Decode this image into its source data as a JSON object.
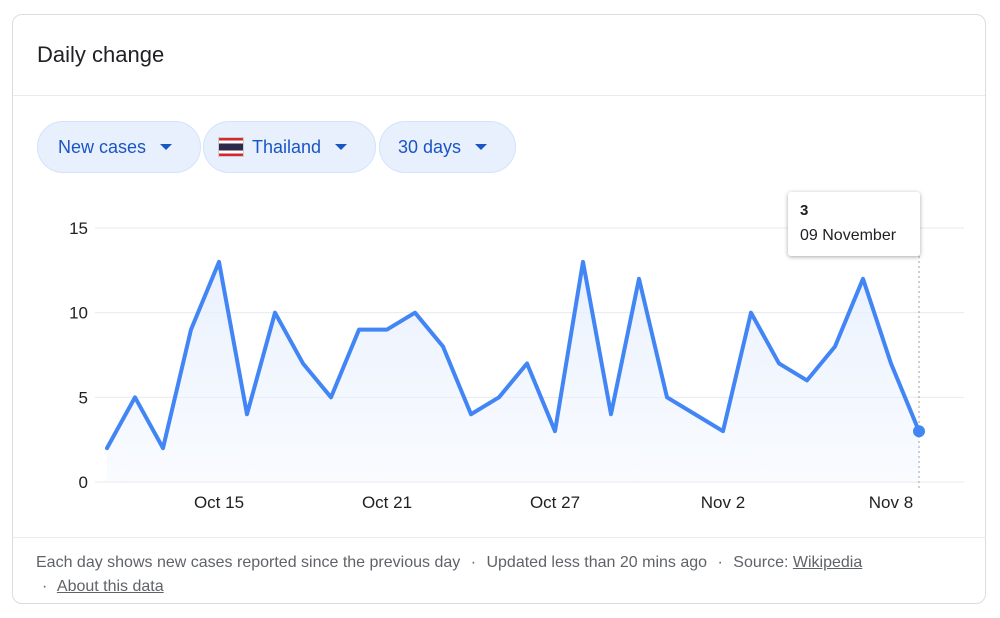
{
  "card": {
    "title": "Daily change"
  },
  "filters": {
    "metric": "New cases",
    "country": "Thailand",
    "range": "30 days"
  },
  "tooltip": {
    "value": "3",
    "date": "09 November"
  },
  "footer": {
    "note": "Each day shows new cases reported since the previous day",
    "updated": "Updated less than 20 mins ago",
    "source_label": "Source:",
    "source_link": "Wikipedia",
    "about_link": "About this data",
    "separator": "·"
  },
  "colors": {
    "line": "#4285f4",
    "fill": "#e8f0fe",
    "grid": "#e8eaed"
  },
  "chart_data": {
    "type": "area",
    "x": [
      "2023-10-11",
      "2023-10-12",
      "2023-10-13",
      "2023-10-14",
      "2023-10-15",
      "2023-10-16",
      "2023-10-17",
      "2023-10-18",
      "2023-10-19",
      "2023-10-20",
      "2023-10-21",
      "2023-10-22",
      "2023-10-23",
      "2023-10-24",
      "2023-10-25",
      "2023-10-26",
      "2023-10-27",
      "2023-10-28",
      "2023-10-29",
      "2023-10-30",
      "2023-10-31",
      "2023-11-01",
      "2023-11-02",
      "2023-11-03",
      "2023-11-04",
      "2023-11-05",
      "2023-11-06",
      "2023-11-07",
      "2023-11-08",
      "2023-11-09"
    ],
    "values": [
      2,
      5,
      2,
      9,
      13,
      4,
      10,
      7,
      5,
      9,
      9,
      10,
      8,
      4,
      5,
      7,
      3,
      13,
      4,
      12,
      5,
      4,
      3,
      10,
      7,
      6,
      8,
      12,
      7,
      3
    ],
    "x_ticks": [
      {
        "label": "Oct 15",
        "x": "2023-10-15"
      },
      {
        "label": "Oct 21",
        "x": "2023-10-21"
      },
      {
        "label": "Oct 27",
        "x": "2023-10-27"
      },
      {
        "label": "Nov 2",
        "x": "2023-11-02"
      },
      {
        "label": "Nov 8",
        "x": "2023-11-08"
      }
    ],
    "y_ticks": [
      0,
      5,
      10,
      15
    ],
    "ylim": [
      0,
      15
    ],
    "grid": true,
    "highlight": {
      "x": "2023-11-09",
      "value": 3
    }
  }
}
